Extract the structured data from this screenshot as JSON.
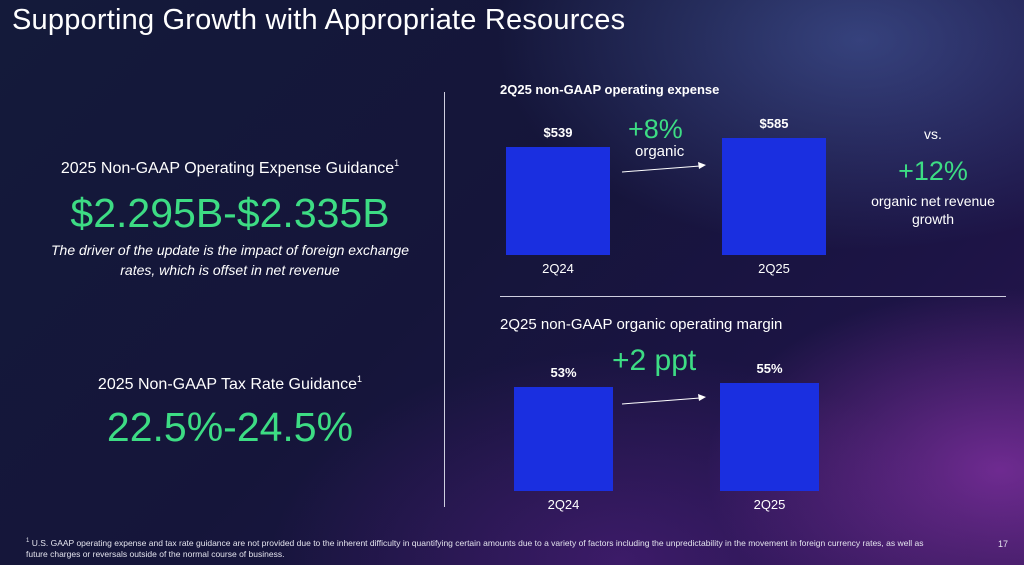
{
  "title": "Supporting Growth with Appropriate Resources",
  "left": {
    "opex_heading": "2025 Non-GAAP Operating Expense Guidance",
    "opex_sup": "1",
    "opex_value": "$2.295B-$2.335B",
    "opex_note": "The driver of the update is the impact of foreign exchange rates, which is offset in net revenue",
    "tax_heading": "2025 Non-GAAP Tax Rate Guidance",
    "tax_sup": "1",
    "tax_value": "22.5%-24.5%"
  },
  "chart_data": [
    {
      "type": "bar",
      "title": "2Q25 non-GAAP operating expense",
      "categories": [
        "2Q24",
        "2Q25"
      ],
      "values": [
        539,
        585
      ],
      "value_labels": [
        "$539",
        "$585"
      ],
      "annotation": {
        "change": "+8%",
        "change_label": "organic"
      },
      "comparison": {
        "vs": "vs.",
        "value": "+12%",
        "label": "organic net revenue growth"
      }
    },
    {
      "type": "bar",
      "title": "2Q25 non-GAAP organic operating margin",
      "categories": [
        "2Q24",
        "2Q25"
      ],
      "values": [
        53,
        55
      ],
      "value_labels": [
        "53%",
        "55%"
      ],
      "annotation": {
        "change": "+2 ppt"
      }
    }
  ],
  "colors": {
    "bar": "#1a2fe0",
    "accent_green": "#3ddc84",
    "text": "#ffffff"
  },
  "footnote": {
    "marker": "1",
    "text": "U.S. GAAP operating expense and tax rate guidance are not provided due to the inherent difficulty in quantifying certain amounts due to a variety of factors including the unpredictability in the movement in foreign currency rates, as well as future charges or reversals outside of the normal course of business."
  },
  "page_number": "17"
}
